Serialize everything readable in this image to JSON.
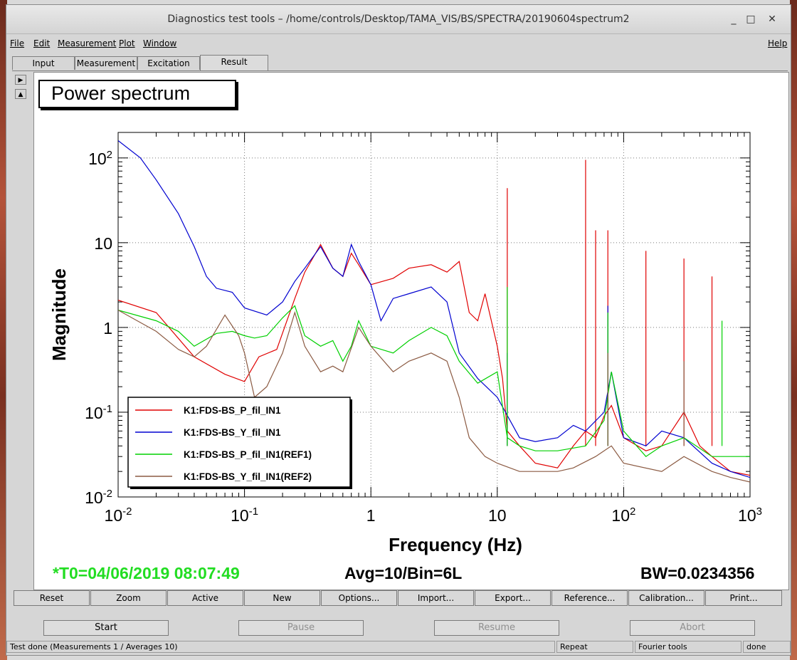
{
  "window": {
    "title": "Diagnostics test tools – /home/controls/Desktop/TAMA_VIS/BS/SPECTRA/20190604spectrum2",
    "minimize_glyph": "_",
    "maximize_glyph": "□",
    "close_glyph": "✕"
  },
  "menu": {
    "file": "File",
    "edit": "Edit",
    "measurement": "Measurement",
    "plot": "Plot",
    "window": "Window",
    "help": "Help"
  },
  "tabs": [
    "Input",
    "Measurement",
    "Excitation",
    "Result"
  ],
  "side_buttons": {
    "right_glyph": "▶",
    "up_glyph": "▲"
  },
  "plot": {
    "title": "Power spectrum",
    "t0": "*T0=04/06/2019 08:07:49",
    "avg": "Avg=10/Bin=6L",
    "bw": "BW=0.0234356"
  },
  "chart_data": {
    "type": "line",
    "xlabel": "Frequency (Hz)",
    "ylabel": "Magnitude",
    "x_scale": "log",
    "y_scale": "log",
    "xlim": [
      0.01,
      1000
    ],
    "ylim": [
      0.01,
      200
    ],
    "x_ticks": [
      {
        "b": "10",
        "e": "-2"
      },
      {
        "b": "10",
        "e": "-1"
      },
      {
        "b": "1",
        "e": ""
      },
      {
        "b": "10",
        "e": ""
      },
      {
        "b": "10",
        "e": "2"
      },
      {
        "b": "10",
        "e": "3"
      }
    ],
    "y_ticks": [
      {
        "b": "10",
        "e": "-2"
      },
      {
        "b": "10",
        "e": "-1"
      },
      {
        "b": "1",
        "e": ""
      },
      {
        "b": "10",
        "e": ""
      },
      {
        "b": "10",
        "e": "2"
      }
    ],
    "grid": true,
    "legend_position": "bottom-left",
    "series": [
      {
        "name": "K1:FDS-BS_P_fil_IN1",
        "color": "#e00000",
        "points": [
          [
            0.01,
            2.1
          ],
          [
            0.02,
            1.5
          ],
          [
            0.04,
            0.45
          ],
          [
            0.07,
            0.28
          ],
          [
            0.1,
            0.23
          ],
          [
            0.13,
            0.45
          ],
          [
            0.18,
            0.55
          ],
          [
            0.25,
            2.2
          ],
          [
            0.3,
            4.5
          ],
          [
            0.4,
            9.5
          ],
          [
            0.5,
            5
          ],
          [
            0.6,
            4
          ],
          [
            0.7,
            7.5
          ],
          [
            0.8,
            5.5
          ],
          [
            1,
            3.2
          ],
          [
            1.5,
            3.8
          ],
          [
            2,
            5
          ],
          [
            3,
            5.5
          ],
          [
            4,
            4.5
          ],
          [
            5,
            6
          ],
          [
            6,
            1.5
          ],
          [
            7,
            1.2
          ],
          [
            8,
            2.5
          ],
          [
            10,
            0.6
          ],
          [
            11,
            0.25
          ],
          [
            12,
            0.06
          ],
          [
            15,
            0.04
          ],
          [
            20,
            0.025
          ],
          [
            30,
            0.022
          ],
          [
            40,
            0.04
          ],
          [
            50,
            0.06
          ],
          [
            60,
            0.05
          ],
          [
            70,
            0.09
          ],
          [
            80,
            0.12
          ],
          [
            100,
            0.05
          ],
          [
            150,
            0.035
          ],
          [
            200,
            0.04
          ],
          [
            300,
            0.1
          ],
          [
            400,
            0.04
          ],
          [
            500,
            0.03
          ],
          [
            700,
            0.02
          ],
          [
            1000,
            0.018
          ]
        ],
        "spikes": [
          [
            12,
            44
          ],
          [
            50,
            95
          ],
          [
            60,
            14
          ],
          [
            75,
            14
          ],
          [
            150,
            8
          ],
          [
            300,
            6.5
          ],
          [
            500,
            4
          ]
        ]
      },
      {
        "name": "K1:FDS-BS_Y_fil_IN1",
        "color": "#0000d0",
        "points": [
          [
            0.01,
            160
          ],
          [
            0.015,
            100
          ],
          [
            0.02,
            55
          ],
          [
            0.03,
            22
          ],
          [
            0.04,
            9
          ],
          [
            0.05,
            4
          ],
          [
            0.06,
            2.9
          ],
          [
            0.08,
            2.6
          ],
          [
            0.1,
            1.7
          ],
          [
            0.15,
            1.4
          ],
          [
            0.2,
            2
          ],
          [
            0.25,
            3.5
          ],
          [
            0.3,
            5
          ],
          [
            0.4,
            9
          ],
          [
            0.5,
            5
          ],
          [
            0.6,
            4
          ],
          [
            0.7,
            9.5
          ],
          [
            0.8,
            6
          ],
          [
            1,
            3.2
          ],
          [
            1.2,
            1.2
          ],
          [
            1.5,
            2.2
          ],
          [
            2,
            2.5
          ],
          [
            3,
            3
          ],
          [
            4,
            2
          ],
          [
            5,
            0.5
          ],
          [
            7,
            0.25
          ],
          [
            10,
            0.15
          ],
          [
            15,
            0.05
          ],
          [
            20,
            0.045
          ],
          [
            30,
            0.05
          ],
          [
            40,
            0.07
          ],
          [
            50,
            0.06
          ],
          [
            70,
            0.1
          ],
          [
            80,
            0.3
          ],
          [
            100,
            0.05
          ],
          [
            150,
            0.04
          ],
          [
            200,
            0.06
          ],
          [
            300,
            0.05
          ],
          [
            500,
            0.025
          ],
          [
            700,
            0.02
          ],
          [
            1000,
            0.017
          ]
        ],
        "spikes": [
          [
            12,
            0.5
          ],
          [
            75,
            1.8
          ]
        ]
      },
      {
        "name": "K1:FDS-BS_P_fil_IN1(REF1)",
        "color": "#00d000",
        "points": [
          [
            0.01,
            1.6
          ],
          [
            0.02,
            1.2
          ],
          [
            0.03,
            0.9
          ],
          [
            0.04,
            0.6
          ],
          [
            0.06,
            0.85
          ],
          [
            0.08,
            0.9
          ],
          [
            0.1,
            0.8
          ],
          [
            0.12,
            0.75
          ],
          [
            0.15,
            0.8
          ],
          [
            0.2,
            1.3
          ],
          [
            0.25,
            1.8
          ],
          [
            0.3,
            0.8
          ],
          [
            0.4,
            0.6
          ],
          [
            0.5,
            0.7
          ],
          [
            0.6,
            0.4
          ],
          [
            0.7,
            0.6
          ],
          [
            0.8,
            1.2
          ],
          [
            1,
            0.6
          ],
          [
            1.5,
            0.5
          ],
          [
            2,
            0.7
          ],
          [
            3,
            1
          ],
          [
            4,
            0.8
          ],
          [
            5,
            0.4
          ],
          [
            7,
            0.22
          ],
          [
            10,
            0.3
          ],
          [
            12,
            0.05
          ],
          [
            15,
            0.04
          ],
          [
            20,
            0.035
          ],
          [
            30,
            0.035
          ],
          [
            50,
            0.04
          ],
          [
            70,
            0.08
          ],
          [
            80,
            0.3
          ],
          [
            100,
            0.06
          ],
          [
            150,
            0.03
          ],
          [
            200,
            0.04
          ],
          [
            300,
            0.05
          ],
          [
            500,
            0.03
          ],
          [
            700,
            0.03
          ],
          [
            1000,
            0.03
          ]
        ],
        "spikes": [
          [
            12,
            3
          ],
          [
            75,
            1.5
          ],
          [
            600,
            1.2
          ]
        ]
      },
      {
        "name": "K1:FDS-BS_Y_fil_IN1(REF2)",
        "color": "#8b5a42",
        "points": [
          [
            0.01,
            1.6
          ],
          [
            0.02,
            0.9
          ],
          [
            0.03,
            0.55
          ],
          [
            0.04,
            0.45
          ],
          [
            0.05,
            0.6
          ],
          [
            0.07,
            1.4
          ],
          [
            0.09,
            0.8
          ],
          [
            0.1,
            0.5
          ],
          [
            0.12,
            0.15
          ],
          [
            0.15,
            0.2
          ],
          [
            0.2,
            0.5
          ],
          [
            0.25,
            1.5
          ],
          [
            0.3,
            0.6
          ],
          [
            0.4,
            0.3
          ],
          [
            0.5,
            0.35
          ],
          [
            0.6,
            0.3
          ],
          [
            0.8,
            1
          ],
          [
            1,
            0.6
          ],
          [
            1.5,
            0.3
          ],
          [
            2,
            0.4
          ],
          [
            3,
            0.5
          ],
          [
            4,
            0.4
          ],
          [
            5,
            0.15
          ],
          [
            6,
            0.05
          ],
          [
            8,
            0.03
          ],
          [
            10,
            0.025
          ],
          [
            15,
            0.02
          ],
          [
            20,
            0.02
          ],
          [
            30,
            0.02
          ],
          [
            40,
            0.022
          ],
          [
            60,
            0.03
          ],
          [
            80,
            0.04
          ],
          [
            100,
            0.025
          ],
          [
            200,
            0.02
          ],
          [
            300,
            0.03
          ],
          [
            500,
            0.02
          ],
          [
            700,
            0.017
          ],
          [
            1000,
            0.015
          ]
        ],
        "spikes": [
          [
            75,
            0.5
          ],
          [
            300,
            0.4
          ]
        ]
      }
    ]
  },
  "buttons": [
    "Reset",
    "Zoom",
    "Active",
    "New",
    "Options...",
    "Import...",
    "Export...",
    "Reference...",
    "Calibration...",
    "Print..."
  ],
  "controls": {
    "start": "Start",
    "pause": "Pause",
    "resume": "Resume",
    "abort": "Abort"
  },
  "status": {
    "message": "Test done (Measurements 1 / Averages 10)",
    "mode": "Repeat",
    "tools": "Fourier tools",
    "state": "done"
  }
}
